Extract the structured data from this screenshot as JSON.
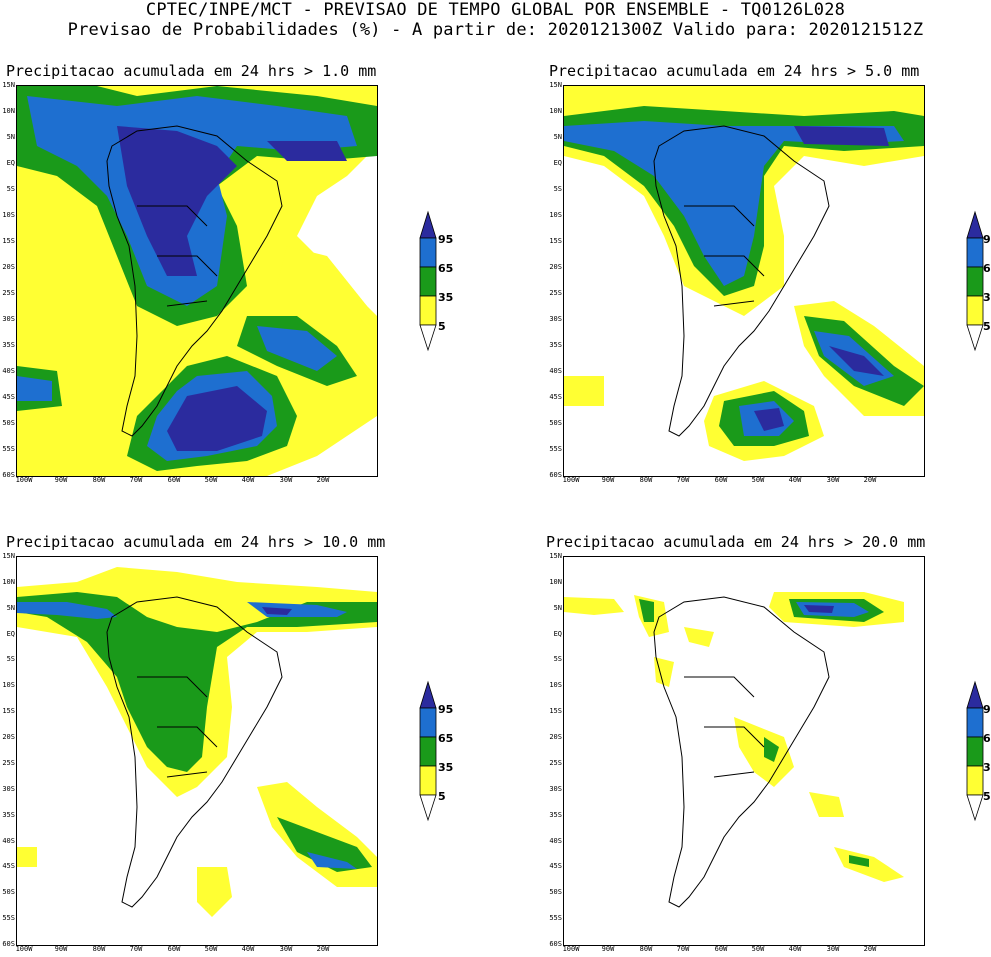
{
  "header": {
    "line1": "CPTEC/INPE/MCT - PREVISAO DE TEMPO GLOBAL POR ENSEMBLE - TQ0126L028",
    "line2": "Previsao de Probabilidades (%) -  A partir de: 2020121300Z  Valido para: 2020121512Z"
  },
  "panels": [
    {
      "title": "Precipitacao acumulada em 24 hrs > 1.0 mm"
    },
    {
      "title": "Precipitacao acumulada em 24 hrs > 5.0 mm"
    },
    {
      "title": "Precipitacao acumulada em 24 hrs > 10.0 mm"
    },
    {
      "title": "Precipitacao acumulada em 24 hrs > 20.0 mm"
    }
  ],
  "axes": {
    "lat_labels": [
      "15N",
      "10N",
      "5N",
      "EQ",
      "5S",
      "10S",
      "15S",
      "20S",
      "25S",
      "30S",
      "35S",
      "40S",
      "45S",
      "50S",
      "55S",
      "60S"
    ],
    "lon_labels": [
      "100W",
      "90W",
      "80W",
      "70W",
      "60W",
      "50W",
      "40W",
      "30W",
      "20W"
    ]
  },
  "colorbar": {
    "levels": [
      "95",
      "65",
      "35",
      "5"
    ],
    "colors": {
      "c95": "#2b2b9e",
      "c65": "#1e6fd0",
      "c35": "#1a9a1a",
      "c5": "#ffff33"
    }
  },
  "colors": {
    "land_outline": "#000000",
    "background": "#ffffff"
  }
}
